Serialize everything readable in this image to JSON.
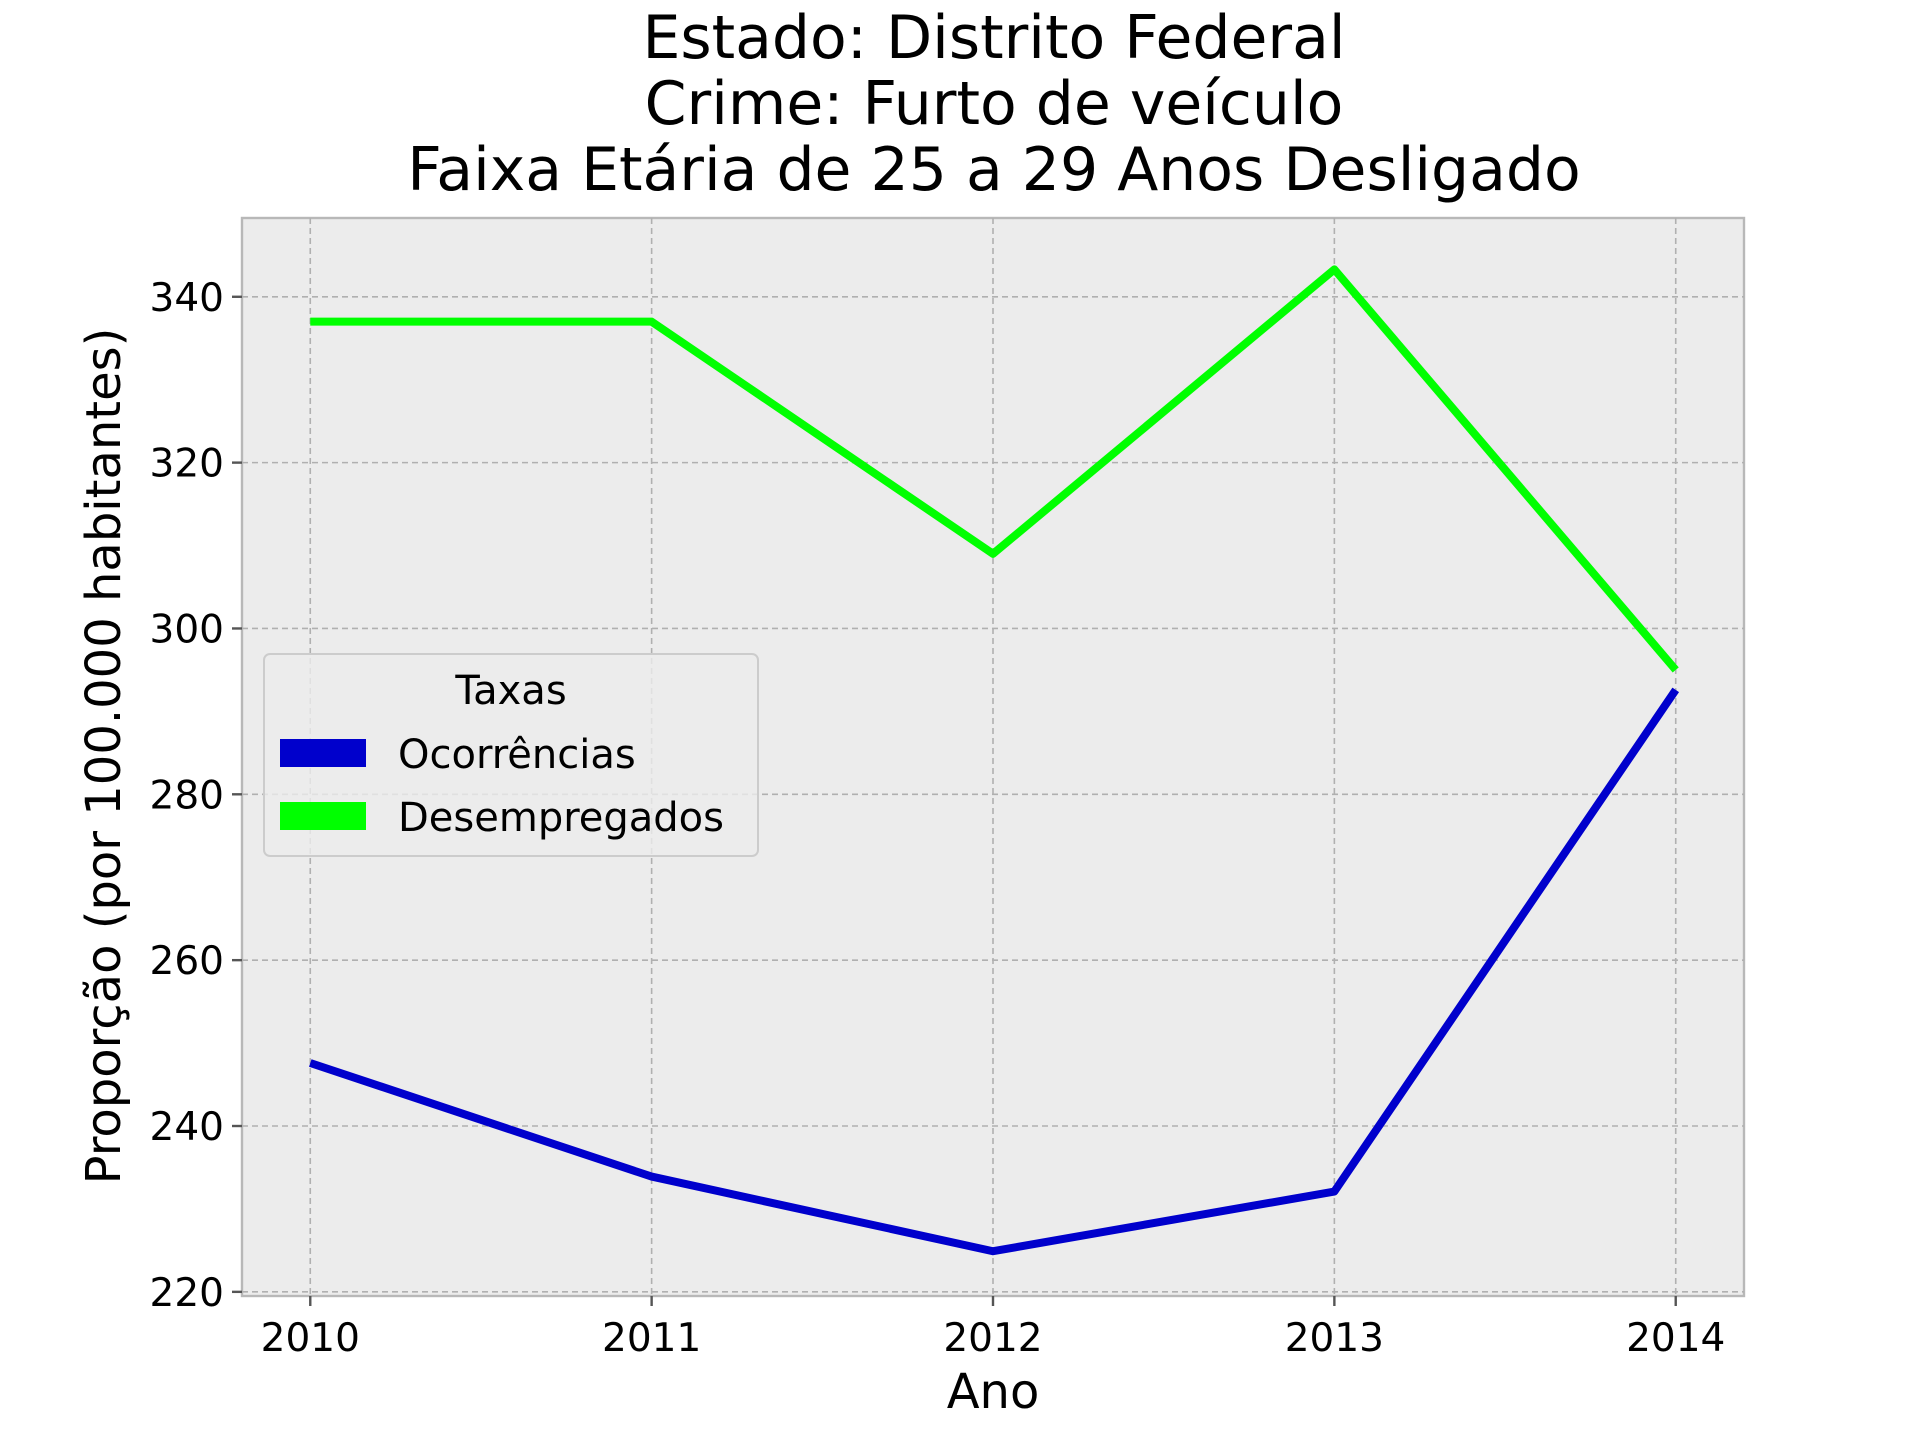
{
  "chart_data": {
    "type": "line",
    "title_lines": [
      "Estado: Distrito Federal",
      "Crime: Furto de veículo",
      "Faixa Etária de 25 a 29 Anos   Desligado"
    ],
    "xlabel": "Ano",
    "ylabel": "Proporção (por 100.000 habitantes)",
    "x": [
      2010,
      2011,
      2012,
      2013,
      2014
    ],
    "x_tick_labels": [
      "2010",
      "2011",
      "2012",
      "2013",
      "2014"
    ],
    "xlim": [
      2009.8,
      2014.2
    ],
    "y_ticks": [
      220,
      240,
      260,
      280,
      300,
      320,
      340
    ],
    "y_tick_labels": [
      "220",
      "240",
      "260",
      "280",
      "300",
      "320",
      "340"
    ],
    "ylim": [
      219.5,
      349.5
    ],
    "grid": true,
    "legend": {
      "title": "Taxas",
      "placement": "center-left"
    },
    "series": [
      {
        "name": "Ocorrências",
        "color": "#0000cc",
        "values": [
          247.6,
          233.9,
          224.9,
          232.1,
          292.6
        ]
      },
      {
        "name": "Desempregados",
        "color": "#00ff00",
        "values": [
          337.0,
          337.0,
          309.0,
          343.3,
          295.0
        ]
      }
    ],
    "background_color": "#ececec"
  }
}
